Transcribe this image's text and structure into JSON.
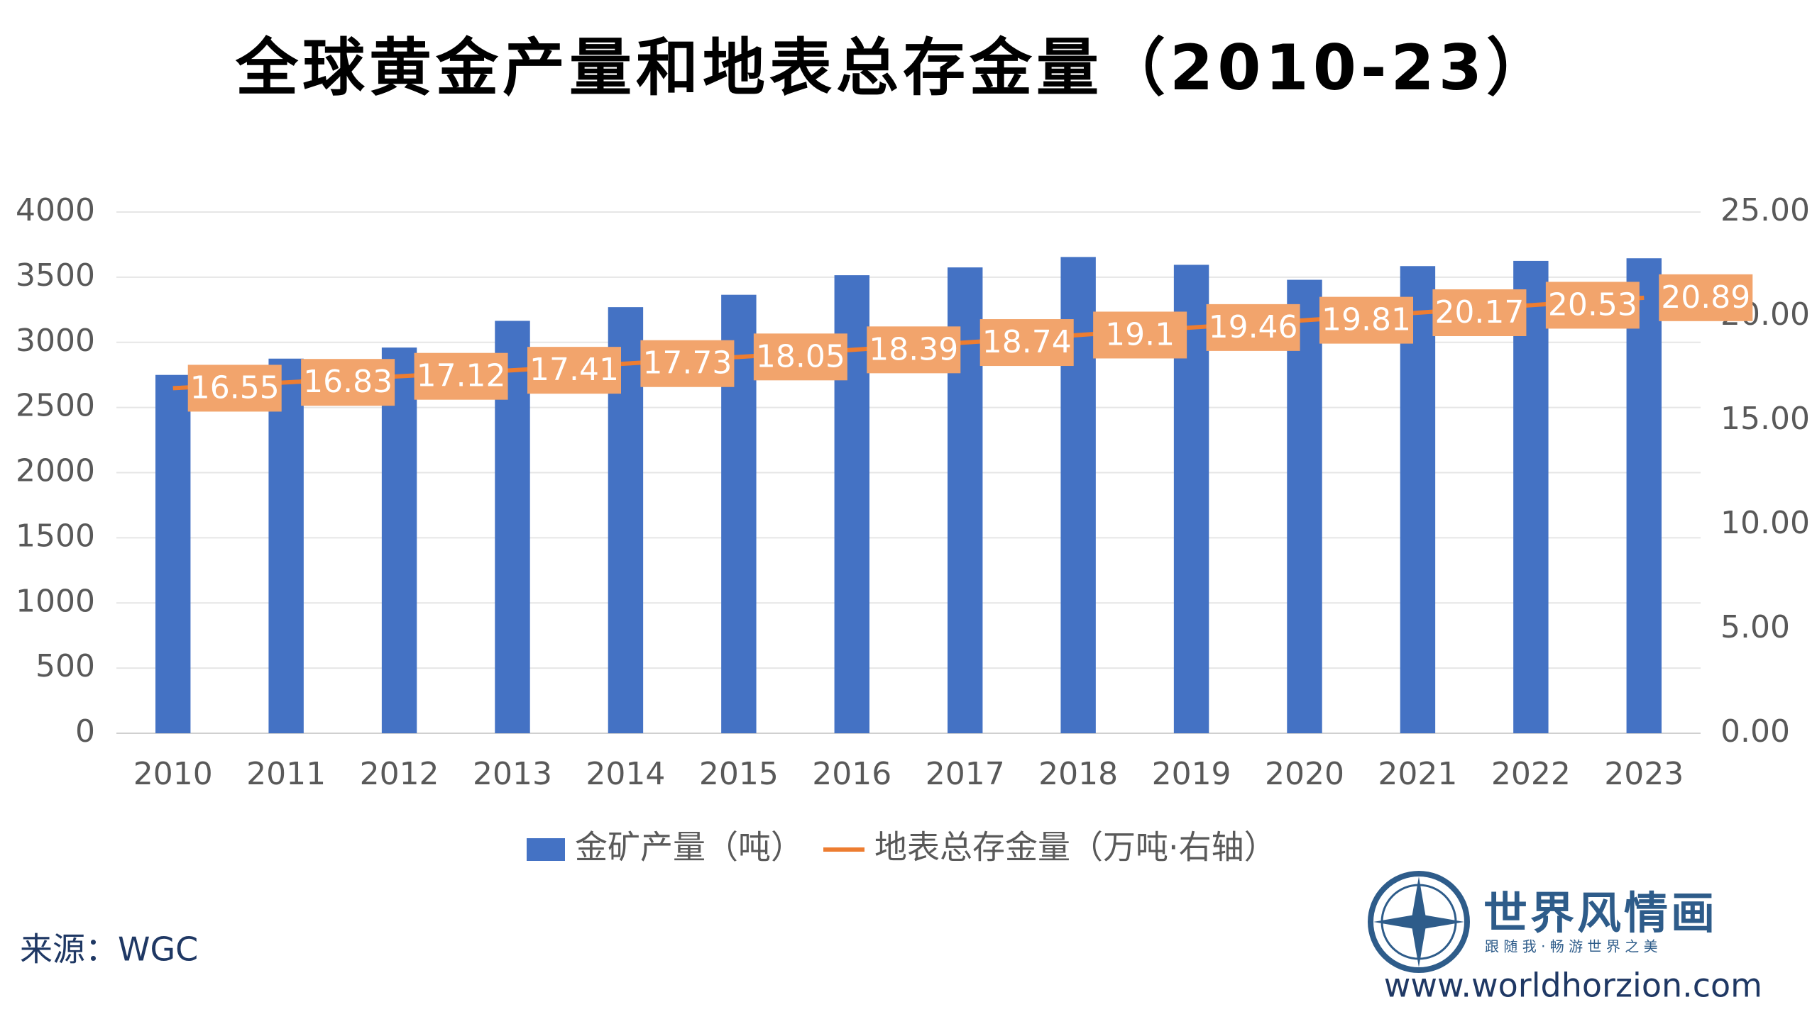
{
  "chart_data": {
    "type": "bar-line",
    "title": "全球黄金产量和地表总存金量（2010-23）",
    "categories": [
      "2010",
      "2011",
      "2012",
      "2013",
      "2014",
      "2015",
      "2016",
      "2017",
      "2018",
      "2019",
      "2020",
      "2021",
      "2022",
      "2023"
    ],
    "series": [
      {
        "name": "金矿产量（吨）",
        "type": "bar",
        "color": "#4472c4",
        "axis": "y",
        "values": [
          2750,
          2875,
          2960,
          3165,
          3270,
          3365,
          3515,
          3575,
          3655,
          3595,
          3480,
          3585,
          3625,
          3645
        ]
      },
      {
        "name": "地表总存金量（万吨·右轴）",
        "type": "line",
        "color": "#ed7d31",
        "axis": "y2",
        "label_color": "#f2a46c",
        "values": [
          16.55,
          16.83,
          17.12,
          17.41,
          17.73,
          18.05,
          18.39,
          18.74,
          19.1,
          19.46,
          19.81,
          20.17,
          20.53,
          20.89
        ]
      }
    ],
    "ylim": [
      0,
      4000
    ],
    "yticks": [
      0,
      500,
      1000,
      1500,
      2000,
      2500,
      3000,
      3500,
      4000
    ],
    "y2lim": [
      0,
      25
    ],
    "y2ticks": [
      {
        "value": 0,
        "label": "0.00"
      },
      {
        "value": 5,
        "label": "5.00"
      },
      {
        "value": 10,
        "label": "10.00"
      },
      {
        "value": 15,
        "label": "15.00"
      },
      {
        "value": 20,
        "label": "20.00"
      },
      {
        "value": 25,
        "label": "25.00"
      }
    ],
    "grid": true,
    "legend": "bottom",
    "source": "来源：WGC"
  },
  "branding": {
    "name": "世界风情画",
    "tagline": "跟 随 我 · 畅 游 世 界 之 美",
    "url": "www.worldhorzion.com"
  }
}
